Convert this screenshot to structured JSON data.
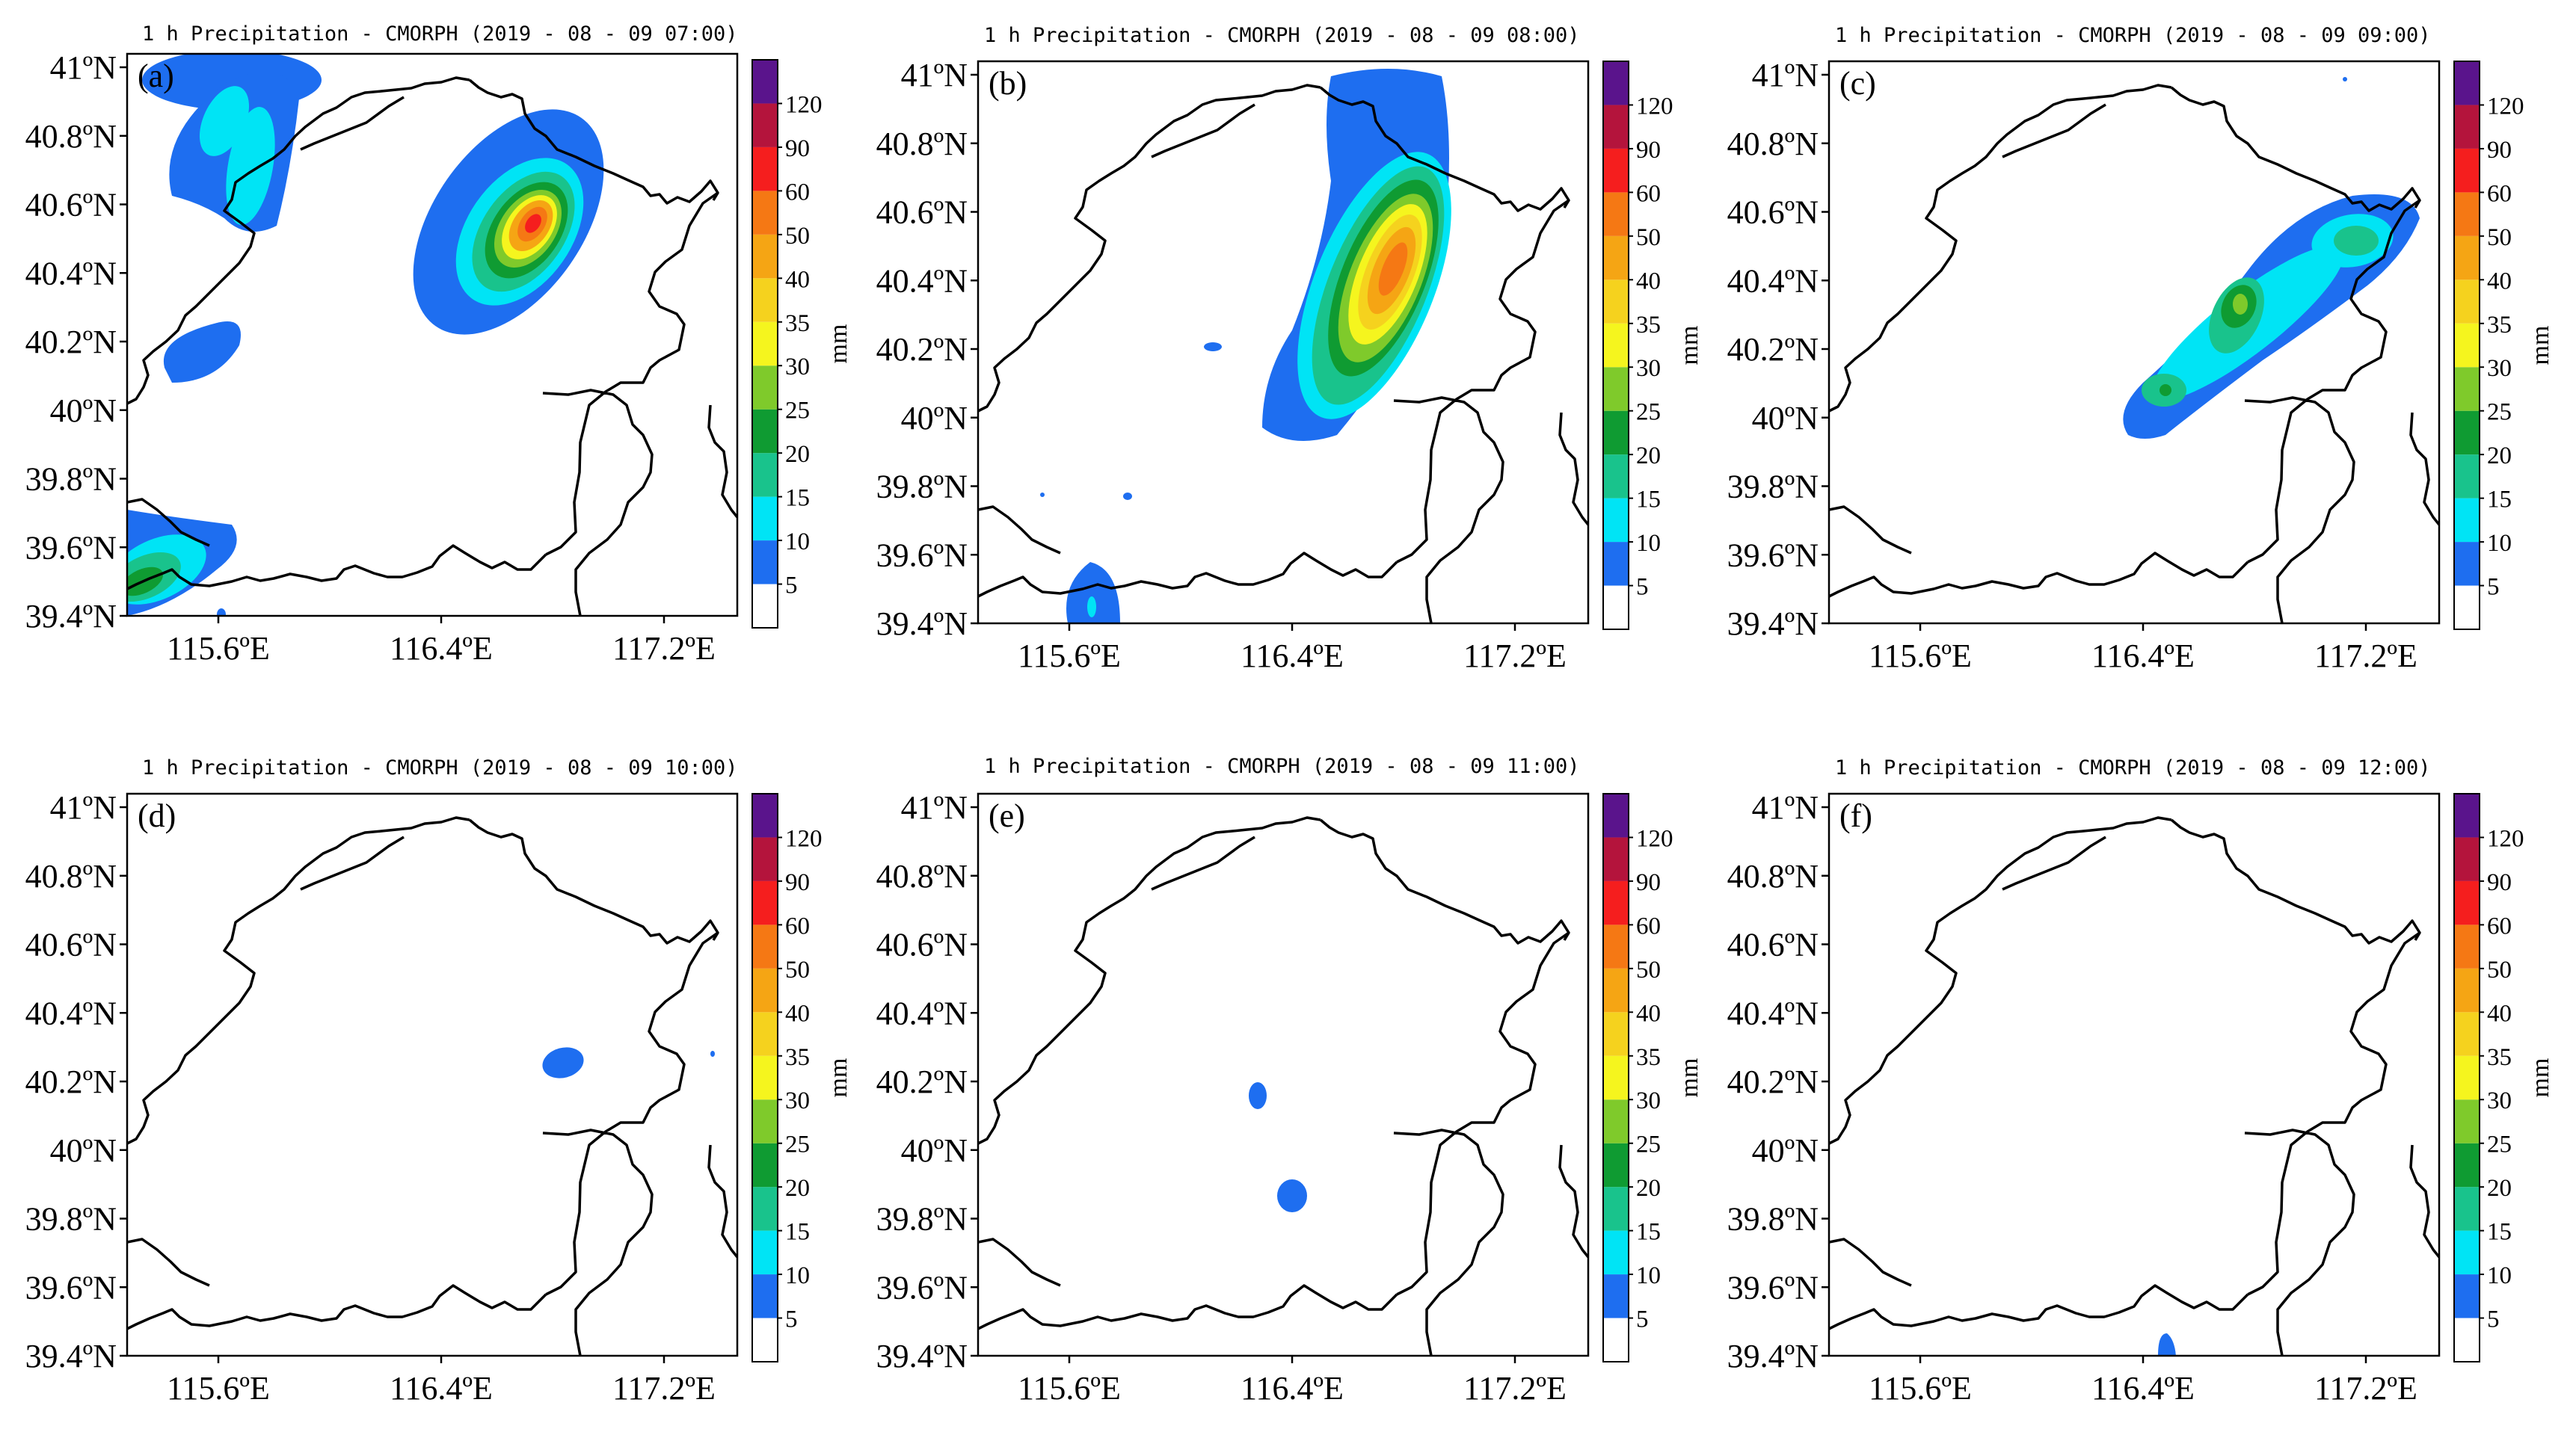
{
  "figure": {
    "panels": [
      {
        "id": "a",
        "letter": "(a)",
        "title": "1 h Precipitation - CMORPH (2019 - 08 - 09 07:00)"
      },
      {
        "id": "b",
        "letter": "(b)",
        "title": "1 h Precipitation - CMORPH (2019 - 08 - 09 08:00)"
      },
      {
        "id": "c",
        "letter": "(c)",
        "title": "1 h Precipitation - CMORPH (2019 - 08 - 09 09:00)"
      },
      {
        "id": "d",
        "letter": "(d)",
        "title": "1 h Precipitation - CMORPH (2019 - 08 - 09 10:00)"
      },
      {
        "id": "e",
        "letter": "(e)",
        "title": "1 h Precipitation - CMORPH (2019 - 08 - 09 11:00)"
      },
      {
        "id": "f",
        "letter": "(f)",
        "title": "1 h Precipitation - CMORPH (2019 - 08 - 09 12:00)"
      }
    ],
    "lon_ticks": [
      "115.6ºE",
      "116.4ºE",
      "117.2ºE"
    ],
    "lat_ticks": [
      "41ºN",
      "40.8ºN",
      "40.6ºN",
      "40.4ºN",
      "40.2ºN",
      "40ºN",
      "39.8ºN",
      "39.6ºN",
      "39.4ºN"
    ],
    "colorbar": {
      "unit": "mm",
      "levels": [
        "5",
        "10",
        "15",
        "20",
        "25",
        "30",
        "35",
        "40",
        "50",
        "60",
        "90",
        "120"
      ],
      "colors": [
        "#ffffff",
        "#1e6ef0",
        "#00e4f5",
        "#19c38c",
        "#0f9b32",
        "#7fca2b",
        "#f5f51e",
        "#f5d21e",
        "#f5a514",
        "#f57814",
        "#f51e1e",
        "#b4143c",
        "#5a148c"
      ]
    }
  }
}
